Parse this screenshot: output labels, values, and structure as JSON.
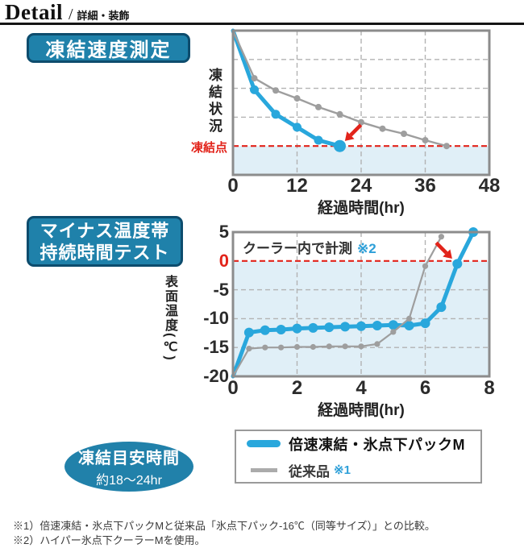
{
  "header": {
    "title": "Detail",
    "slash": "/",
    "subtitle": "詳細・装飾"
  },
  "colors": {
    "badge_bg": "#1f81aa",
    "badge_border": "#0d4c6d",
    "accent_blue": "#29a7dc",
    "gray_line": "#9e9e9e",
    "red": "#e2231a",
    "below_fill": "#e0eff7",
    "grid": "#b3b3b3",
    "ref_blue": "#2d9fd8",
    "plot_border": "#8c8c8c"
  },
  "section_freeze_speed": {
    "badge": "凍結速度測定"
  },
  "section_duration": {
    "badge_line1": "マイナス温度帯",
    "badge_line2": "持続時間テスト",
    "annotation": "クーラー内で計測",
    "annotation_ref": "※2"
  },
  "legend": {
    "items": [
      {
        "label": "倍速凍結・氷点下パックM",
        "ref": ""
      },
      {
        "label": "従来品",
        "ref": "※1"
      }
    ]
  },
  "freeze_time_badge": {
    "title": "凍結目安時間",
    "value": "約18〜24hr"
  },
  "footnotes": {
    "note1": "※1）倍速凍結・氷点下パックMと従来品「氷点下パック-16℃（同等サイズ）」との比較。",
    "note2": "※2）ハイパー氷点下クーラーMを使用。"
  },
  "chart_data": [
    {
      "type": "line",
      "title": "凍結速度測定",
      "xlabel": "経過時間(hr)",
      "ylabel": "凍結状況",
      "xlim": [
        0,
        48
      ],
      "xticks": [
        0,
        12,
        24,
        36,
        48
      ],
      "ylim": [
        0,
        100
      ],
      "y_units": "relative freezing state (no numeric axis; 100 = unfrozen start, 20 = freezing point)",
      "gridlines_y": [
        80,
        60,
        40
      ],
      "grid": "dashed",
      "legend_position": "below",
      "threshold": {
        "label": "凍結点",
        "value": 20,
        "style": "red-dashed"
      },
      "series": [
        {
          "name": "倍速凍結・氷点下パックM",
          "color": "#29a7dc",
          "line_width": 5,
          "dot_r": 5.5,
          "last_dot_r": 7.5,
          "x": [
            0,
            4,
            8,
            12,
            16,
            20
          ],
          "y": [
            100,
            59,
            42,
            33,
            24,
            20
          ]
        },
        {
          "name": "従来品",
          "color": "#9e9e9e",
          "line_width": 2.4,
          "dot_r": 4,
          "x": [
            0,
            4,
            8,
            12,
            16,
            20,
            24,
            28,
            32,
            36,
            40
          ],
          "y": [
            100,
            67,
            58.5,
            53,
            47,
            42,
            36.5,
            32,
            28.5,
            24,
            20
          ]
        }
      ],
      "arrow": {
        "points_at_x": 20,
        "points_at_y": 20,
        "direction": "down-left"
      }
    },
    {
      "type": "line",
      "title": "マイナス温度帯持続時間テスト",
      "xlabel": "経過時間(hr)",
      "ylabel": "表面温度(℃)",
      "annotation": "クーラー内で計測 ※2",
      "xlim": [
        0,
        8
      ],
      "xticks": [
        0,
        2,
        4,
        6,
        8
      ],
      "ylim": [
        -20,
        5
      ],
      "yticks": [
        5,
        0,
        -5,
        -10,
        -15,
        -20
      ],
      "red_tick": 0,
      "gridlines_y": [
        -5,
        -10,
        -15
      ],
      "grid": "dashed",
      "threshold": {
        "value": 0,
        "style": "red-dashed"
      },
      "series": [
        {
          "name": "倍速凍結・氷点下パックM",
          "color": "#29a7dc",
          "line_width": 5,
          "dot_r": 6,
          "x": [
            0,
            0.5,
            1,
            1.5,
            2,
            2.5,
            3,
            3.5,
            4,
            4.5,
            5,
            5.5,
            6,
            6.5,
            7,
            7.5
          ],
          "y": [
            -20,
            -12.4,
            -12,
            -11.9,
            -11.7,
            -11.6,
            -11.5,
            -11.4,
            -11.3,
            -11.2,
            -11.1,
            -11.2,
            -10.8,
            -8,
            -0.5,
            5
          ]
        },
        {
          "name": "従来品",
          "color": "#9e9e9e",
          "line_width": 2.2,
          "dot_r": 3.6,
          "x": [
            0,
            0.5,
            1,
            1.5,
            2,
            2.5,
            3,
            3.5,
            4,
            4.5,
            5,
            5.5,
            6,
            6.5
          ],
          "y": [
            -20,
            -15.2,
            -15,
            -15,
            -14.9,
            -14.9,
            -14.8,
            -14.8,
            -14.8,
            -14.4,
            -12.3,
            -10,
            -0.9,
            4.2
          ]
        }
      ],
      "arrow": {
        "points_at_x": 7,
        "points_at_y": -0.5,
        "direction": "down-right"
      }
    }
  ]
}
